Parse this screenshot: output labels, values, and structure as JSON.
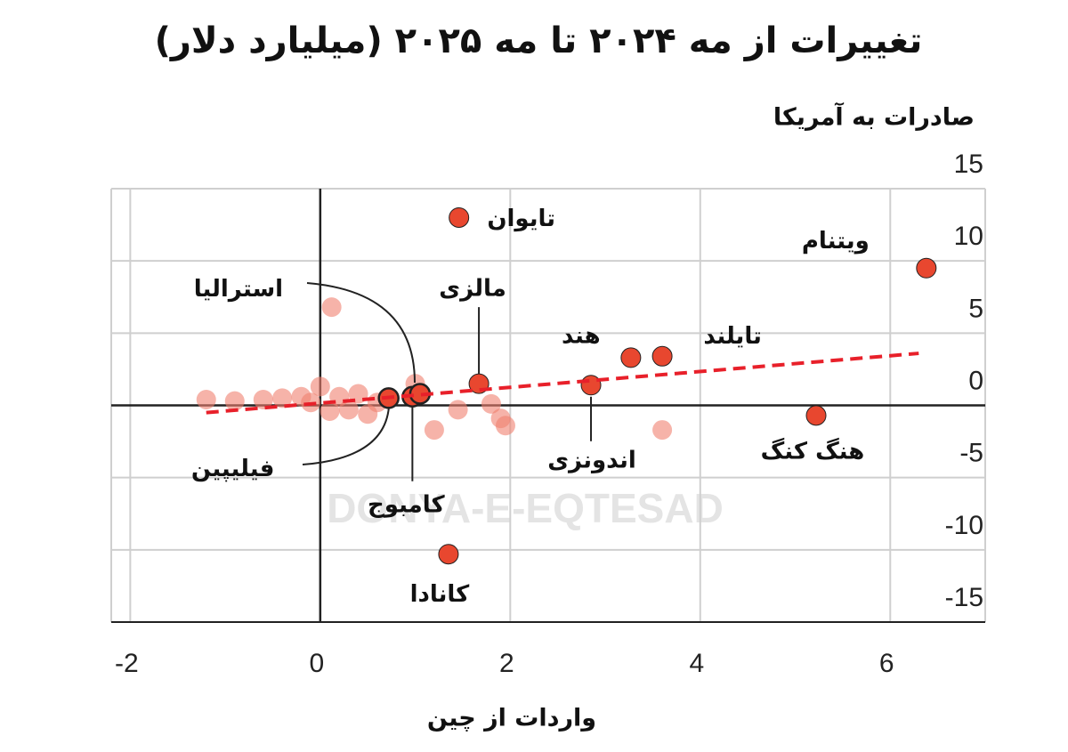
{
  "chart_data": {
    "type": "scatter",
    "title": "تغییرات از مه ۲۰۲۴ تا مه ۲۰۲۵ (میلیارد دلار)",
    "y_label": "صادرات به آمریکا",
    "x_label": "واردات از چین",
    "watermark": "DONYA-E-EQTESAD",
    "xlim": [
      -2.2,
      7
    ],
    "xticks": [
      -2,
      0,
      2,
      4,
      6
    ],
    "ylim": [
      -15,
      15
    ],
    "yticks": [
      15,
      10,
      5,
      0,
      -5,
      -10,
      -15
    ],
    "grid": true,
    "series": [
      {
        "color": "#f08070",
        "opacity": 0.6,
        "x": [
          0.12,
          -1.2,
          -0.9,
          -0.6,
          -0.4,
          -0.2,
          -0.1,
          0.0,
          0.1,
          0.2,
          0.3,
          0.4,
          0.5,
          0.6,
          1.2,
          1.45,
          1.8,
          1.95,
          3.6,
          1.9,
          1.0
        ],
        "values": [
          6.8,
          0.4,
          0.3,
          0.4,
          0.5,
          0.6,
          0.2,
          1.3,
          -0.4,
          0.6,
          -0.3,
          0.8,
          -0.6,
          0.2,
          -1.7,
          -0.3,
          0.1,
          -1.4,
          -1.7,
          -0.9,
          1.5
        ]
      },
      {
        "color": "#e8472f",
        "opacity": 1,
        "labels": [
          "تایوان",
          "ویتنام",
          "مالزی",
          "هند",
          "تایلند",
          "اندونزی",
          "هنگ کنگ",
          "کانادا",
          "کامبوج",
          "فیلیپین",
          "استرالیا"
        ],
        "x": [
          1.46,
          6.38,
          1.67,
          3.27,
          3.6,
          2.85,
          5.22,
          1.35,
          0.97,
          0.72,
          1.05
        ],
        "values": [
          13.0,
          9.5,
          1.5,
          3.3,
          3.4,
          1.4,
          -0.7,
          -10.3,
          0.6,
          0.5,
          0.8
        ]
      }
    ],
    "trend": {
      "color": "#e8202a",
      "x": [
        -1.2,
        6.3
      ],
      "values": [
        -0.5,
        3.6
      ]
    }
  }
}
